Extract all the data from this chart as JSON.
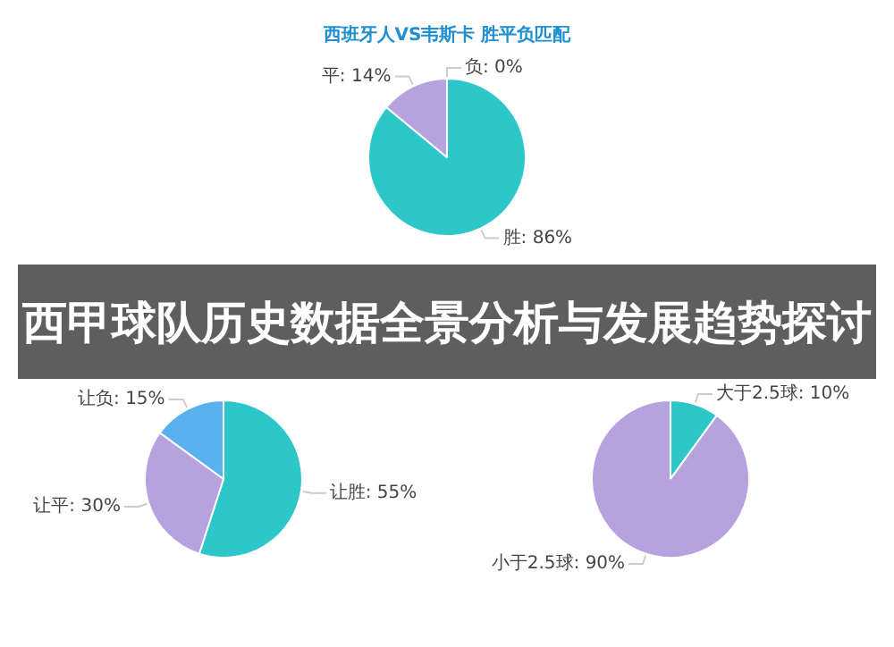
{
  "chart_data": [
    {
      "type": "pie",
      "title": "西班牙人VS韦斯卡 胜平负匹配",
      "categories": [
        "胜",
        "平",
        "负"
      ],
      "values": [
        86,
        14,
        0
      ],
      "colors": [
        "#2ec7c9",
        "#b6a2de",
        "#5ab1ef"
      ],
      "value_labels": [
        "86%",
        "14%",
        "0%"
      ]
    },
    {
      "type": "other",
      "title": "西甲球队历史数据全景分析与发展趋势探讨"
    },
    {
      "type": "pie",
      "categories": [
        "让胜",
        "让平",
        "让负"
      ],
      "values": [
        55,
        30,
        15
      ],
      "colors": [
        "#2ec7c9",
        "#b6a2de",
        "#5ab1ef"
      ],
      "value_labels": [
        "55%",
        "30%",
        "15%"
      ]
    },
    {
      "type": "pie",
      "categories": [
        "大于2.5球",
        "小于2.5球"
      ],
      "values": [
        10,
        90
      ],
      "colors": [
        "#2ec7c9",
        "#b6a2de"
      ],
      "value_labels": [
        "10%",
        "90%"
      ]
    }
  ]
}
